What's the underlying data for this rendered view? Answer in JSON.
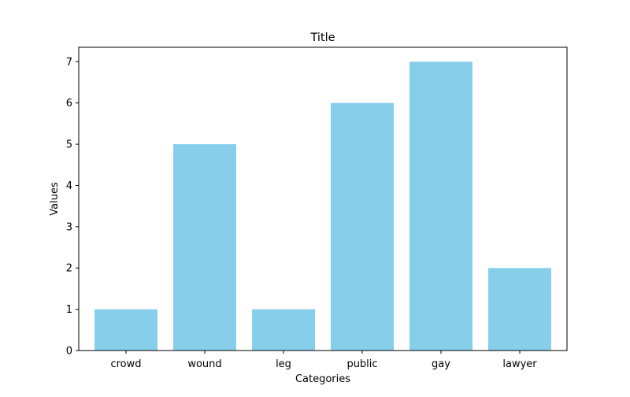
{
  "chart_data": {
    "type": "bar",
    "title": "Title",
    "xlabel": "Categories",
    "ylabel": "Values",
    "categories": [
      "crowd",
      "wound",
      "leg",
      "public",
      "gay",
      "lawyer"
    ],
    "values": [
      1,
      5,
      1,
      6,
      7,
      2
    ],
    "ylim": [
      0,
      7.35
    ],
    "yticks": [
      0,
      1,
      2,
      3,
      4,
      5,
      6,
      7
    ],
    "grid": false,
    "legend": "none",
    "bar_color": "#87CEEB"
  }
}
